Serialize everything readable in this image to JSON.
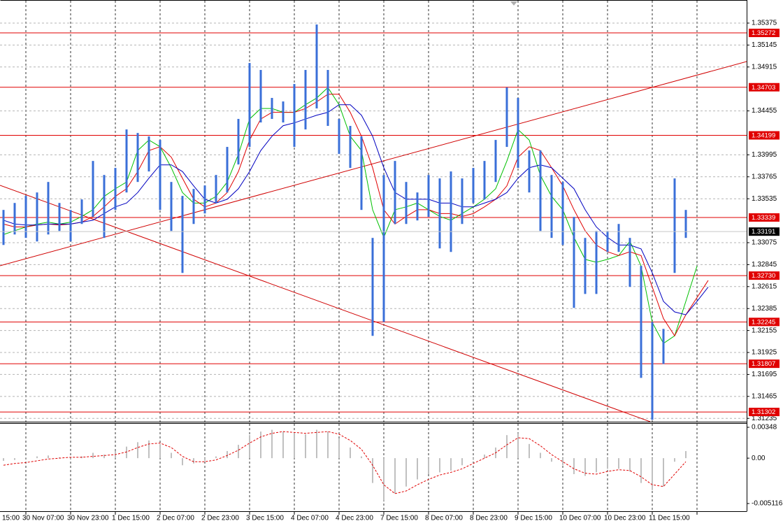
{
  "chart_data": [
    {
      "type": "range",
      "categories": [
        "15:00",
        null,
        null,
        null,
        "30 Nov 07:00",
        null,
        null,
        null,
        "30 Nov 23:00",
        null,
        null,
        null,
        "1 Dec 15:00",
        null,
        null,
        null,
        "2 Dec 07:00",
        null,
        null,
        null,
        "2 Dec 23:00",
        null,
        null,
        null,
        "3 Dec 15:00",
        null,
        null,
        null,
        "4 Dec 07:00",
        null,
        null,
        null,
        "4 Dec 23:00",
        null,
        null,
        null,
        "7 Dec 15:00",
        null,
        null,
        null,
        "8 Dec 07:00",
        null,
        null,
        null,
        "8 Dec 23:00",
        null,
        null,
        null,
        "9 Dec 15:00",
        null,
        null,
        null,
        "10 Dec 07:00",
        null,
        null,
        null,
        "10 Dec 23:00",
        null,
        null,
        null,
        "11 Dec 15:00",
        null,
        null,
        null,
        null,
        null
      ],
      "color": "#3a6fd8",
      "high": [
        null,
        null,
        1.33418,
        1.33491,
        1.33565,
        1.33601,
        1.33711,
        1.33491,
        1.33418,
        1.33528,
        1.33931,
        1.33784,
        1.33858,
        1.34261,
        1.34224,
        1.34188,
        1.34151,
        1.33711,
        1.33565,
        1.33638,
        1.33674,
        1.33784,
        1.34078,
        1.34371,
        1.34957,
        1.34884,
        1.34591,
        1.34554,
        1.34737,
        1.34884,
        1.3536,
        1.34884,
        1.34371,
        1.34298,
        1.34188,
        1.33125,
        1.33784,
        1.33931,
        1.33711,
        1.33601,
        1.33784,
        1.33748,
        1.33821,
        1.33748,
        1.33858,
        1.33931,
        1.34151,
        1.34701,
        1.34591,
        1.34041,
        1.34041,
        1.33784,
        1.33711,
        1.33345,
        1.33125,
        1.33198,
        1.33198,
        1.33271,
        1.33125,
        1.32832,
        1.32245,
        1.32172,
        1.33748,
        1.33418,
        null,
        null
      ],
      "low": [
        null,
        null,
        1.33051,
        1.33161,
        1.33125,
        1.33088,
        1.33161,
        1.33198,
        1.33088,
        1.33271,
        1.33345,
        1.33125,
        1.33418,
        1.33601,
        1.33711,
        1.33821,
        1.33418,
        1.33198,
        1.32758,
        1.33271,
        1.33381,
        1.33491,
        1.33601,
        1.33894,
        1.34078,
        1.34334,
        1.34371,
        1.34334,
        1.34078,
        1.34261,
        1.34481,
        1.34298,
        1.34004,
        1.33858,
        1.33418,
        1.32099,
        1.32245,
        1.33271,
        1.33271,
        1.33308,
        1.33345,
        1.33015,
        1.32978,
        1.33271,
        1.33491,
        1.33528,
        1.33711,
        1.34078,
        1.33858,
        1.33601,
        1.33198,
        1.33125,
        1.33051,
        1.32392,
        1.32538,
        1.32538,
        1.32978,
        1.32978,
        1.32612,
        1.31659,
        1.3122,
        1.31805,
        1.32758,
        1.33125,
        null,
        null
      ],
      "lines": [
        {
          "color": "#00c000",
          "values": [
            null,
            null,
            1.3316,
            1.332,
            1.3324,
            1.3327,
            1.3329,
            1.3327,
            1.3329,
            1.3335,
            1.3342,
            1.3356,
            1.3364,
            1.3371,
            1.3404,
            1.3415,
            1.3408,
            1.3386,
            1.336,
            1.3349,
            1.3349,
            1.3356,
            1.3371,
            1.34,
            1.3437,
            1.3448,
            1.3448,
            1.3444,
            1.3444,
            1.3452,
            1.3459,
            1.347,
            1.3452,
            1.3419,
            1.3404,
            1.3342,
            1.3313,
            1.3342,
            1.3345,
            1.3349,
            1.3342,
            1.3335,
            1.3331,
            1.3338,
            1.3345,
            1.3353,
            1.3364,
            1.3393,
            1.3426,
            1.3415,
            1.3378,
            1.3356,
            1.3342,
            1.3313,
            1.329,
            1.3287,
            1.329,
            1.3294,
            1.3309,
            1.3283,
            1.3224,
            1.3202,
            1.321,
            1.3246,
            1.3283,
            null
          ]
        },
        {
          "color": "#e00000",
          "values": [
            null,
            null,
            1.3327,
            1.3324,
            1.3324,
            1.3326,
            1.3327,
            1.3326,
            1.3327,
            1.3329,
            1.3335,
            1.3345,
            1.3356,
            1.3364,
            1.3382,
            1.3404,
            1.3408,
            1.3397,
            1.3375,
            1.3353,
            1.3345,
            1.3349,
            1.336,
            1.3382,
            1.3415,
            1.3437,
            1.3444,
            1.3444,
            1.3444,
            1.3448,
            1.3455,
            1.3463,
            1.3463,
            1.3444,
            1.3419,
            1.3386,
            1.3342,
            1.3327,
            1.3335,
            1.3342,
            1.3342,
            1.3338,
            1.3338,
            1.3335,
            1.3338,
            1.3345,
            1.3353,
            1.3367,
            1.3397,
            1.3408,
            1.3404,
            1.3386,
            1.3367,
            1.3342,
            1.332,
            1.3305,
            1.3298,
            1.3294,
            1.3298,
            1.3294,
            1.3261,
            1.3228,
            1.321,
            1.3232,
            1.325,
            1.3268
          ]
        },
        {
          "color": "#0000c0",
          "values": [
            null,
            null,
            1.3331,
            1.3327,
            1.3326,
            1.3326,
            1.3327,
            1.3327,
            1.3327,
            1.3329,
            1.3331,
            1.3338,
            1.3345,
            1.3349,
            1.336,
            1.3375,
            1.3389,
            1.3389,
            1.3382,
            1.3367,
            1.3353,
            1.3349,
            1.3353,
            1.3364,
            1.3382,
            1.3404,
            1.3419,
            1.343,
            1.3433,
            1.3437,
            1.3441,
            1.3444,
            1.3452,
            1.3452,
            1.3441,
            1.3419,
            1.3386,
            1.336,
            1.3353,
            1.3353,
            1.3353,
            1.3349,
            1.3349,
            1.3345,
            1.3345,
            1.3349,
            1.3353,
            1.336,
            1.3375,
            1.3386,
            1.3389,
            1.3386,
            1.3375,
            1.3364,
            1.3342,
            1.3324,
            1.3313,
            1.3305,
            1.3305,
            1.3301,
            1.3276,
            1.3246,
            1.3235,
            1.3232,
            1.3246,
            1.3261
          ]
        }
      ],
      "ylim": [
        1.312,
        1.3558
      ],
      "yticks": [
        1.35375,
        1.35145,
        1.34915,
        1.34455,
        1.33995,
        1.33765,
        1.33535,
        1.33075,
        1.32845,
        1.32615,
        1.32385,
        1.32155,
        1.31925,
        1.31695,
        1.31465,
        1.31235
      ],
      "grid": true,
      "levels": [
        1.35272,
        1.34703,
        1.34199,
        1.33339,
        {
          "value": 1.3273,
          "label": "1.32730"
        },
        1.32245,
        1.31807,
        1.31302
      ],
      "level_color": "#e00000",
      "last_price": 1.33191
    },
    {
      "type": "macd",
      "histogram": [
        null,
        null,
        -0.0003,
        -0.0002,
        0.0001,
        0.0002,
        0.0003,
        0.0001,
        -0.0001,
        0.0002,
        0.0006,
        0.0004,
        0.0008,
        0.0013,
        0.0018,
        0.002,
        0.0016,
        0.0006,
        -0.0008,
        -0.0006,
        -0.0003,
        0.0002,
        0.0008,
        0.0015,
        0.0026,
        0.003,
        0.0032,
        0.003,
        0.0029,
        0.0027,
        0.0032,
        0.003,
        0.0022,
        0.0012,
        0.0002,
        -0.0028,
        -0.0048,
        -0.004,
        -0.0032,
        -0.0024,
        -0.0018,
        -0.0016,
        -0.0014,
        -0.0008,
        -0.0002,
        0.0004,
        0.0012,
        0.0026,
        0.0028,
        0.0016,
        0.0006,
        -0.0004,
        -0.0008,
        -0.0018,
        -0.002,
        -0.0016,
        -0.0012,
        -0.0012,
        -0.0015,
        -0.0028,
        -0.0036,
        -0.0032,
        -0.0004,
        0.0008,
        null,
        null
      ],
      "histogram_color": "#c0c0c0",
      "signal": [
        null,
        null,
        -0.0008,
        -0.0006,
        -0.0005,
        -0.0003,
        -0.0001,
        0,
        0.0001,
        0.0001,
        0.0002,
        0.0003,
        0.0004,
        0.0007,
        0.0012,
        0.0016,
        0.0017,
        0.0012,
        0.0002,
        -0.0004,
        -0.0004,
        -0.0002,
        0.0003,
        0.0009,
        0.0017,
        0.0024,
        0.0028,
        0.003,
        0.0029,
        0.0028,
        0.0029,
        0.003,
        0.0027,
        0.002,
        0.001,
        -0.0008,
        -0.003,
        -0.004,
        -0.0037,
        -0.003,
        -0.0024,
        -0.0019,
        -0.0016,
        -0.0012,
        -0.0006,
        0,
        0.0006,
        0.0015,
        0.0023,
        0.0022,
        0.0014,
        0.0004,
        -0.0004,
        -0.0012,
        -0.0017,
        -0.0018,
        -0.0015,
        -0.0013,
        -0.0014,
        -0.0021,
        -0.003,
        -0.0032,
        -0.0018,
        -0.0004,
        null,
        null
      ],
      "signal_color": "#e00000",
      "ylim": [
        -0.005116,
        0.00348
      ],
      "yticks": [
        0.00348,
        {
          "value": 0,
          "label": "0.00"
        },
        -0.005116
      ],
      "grid": false
    }
  ]
}
